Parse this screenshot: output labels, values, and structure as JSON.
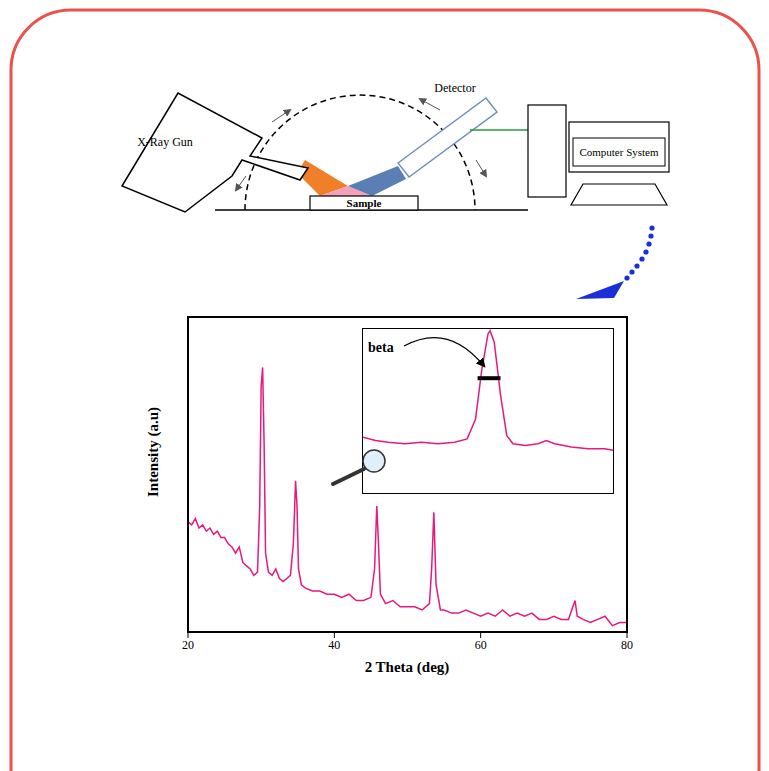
{
  "diagram": {
    "x_ray_gun": "X-Ray Gun",
    "detector": "Detector",
    "sample": "Sample",
    "computer": "Computer System"
  },
  "chart_data": [
    {
      "type": "line",
      "x_label": "2 Theta (deg)",
      "y_label": "Intensity (a.u)",
      "color": "#e8197d",
      "xlim": [
        20,
        80
      ],
      "xticks": [
        20,
        40,
        60,
        80
      ],
      "ylim": [
        0,
        100
      ],
      "tick_labels": "x",
      "x": [
        20,
        20.5,
        21,
        21.5,
        22,
        22.5,
        23,
        23.5,
        24,
        24.5,
        25,
        25.5,
        26,
        26.5,
        27,
        27.5,
        28,
        28.5,
        29,
        29.5,
        29.8,
        30.0,
        30.2,
        30.4,
        30.6,
        31,
        31.5,
        32,
        32.5,
        33,
        33.5,
        34,
        34.4,
        34.7,
        34.9,
        35.1,
        35.5,
        36,
        37,
        38,
        39,
        40,
        41,
        42,
        43,
        44,
        45,
        45.5,
        45.8,
        46.0,
        46.3,
        47,
        48,
        49,
        50,
        51,
        52,
        53,
        53.3,
        53.6,
        53.9,
        54.5,
        55,
        56,
        57,
        58,
        59,
        60,
        61,
        62,
        63,
        64,
        65,
        66,
        67,
        68,
        69,
        70,
        71,
        72,
        72.6,
        72.9,
        73.2,
        74,
        75,
        76,
        77,
        78,
        79,
        80
      ],
      "values": [
        35,
        34,
        36,
        33,
        34,
        32,
        33,
        31,
        32,
        30,
        30,
        28,
        27,
        25,
        27,
        22,
        21,
        20,
        18,
        19,
        40,
        78,
        84,
        60,
        25,
        19,
        18,
        20,
        17,
        16,
        17,
        18,
        28,
        48,
        40,
        20,
        15,
        14,
        13,
        13,
        12,
        12,
        11,
        12,
        10,
        10,
        11,
        20,
        40,
        30,
        12,
        9,
        10,
        8,
        8,
        8,
        7,
        9,
        20,
        38,
        15,
        7,
        7,
        6,
        6,
        7,
        6,
        5,
        6,
        5,
        7,
        5,
        6,
        5,
        6,
        4,
        4,
        5,
        4,
        4,
        8,
        10,
        5,
        4,
        3,
        4,
        5,
        2,
        3,
        3
      ]
    },
    {
      "type": "line",
      "annotation": "beta",
      "color": "#e8197d",
      "xlim": [
        27,
        33
      ],
      "ylim": [
        0,
        100
      ],
      "tick_labels": false,
      "x": [
        27,
        27.3,
        27.6,
        28,
        28.4,
        28.8,
        29.2,
        29.5,
        29.7,
        29.85,
        30.0,
        30.05,
        30.15,
        30.3,
        30.45,
        30.6,
        30.9,
        31.2,
        31.4,
        31.6,
        32,
        32.4,
        32.8,
        33
      ],
      "values": [
        34,
        32,
        31,
        30,
        31,
        30,
        31,
        33,
        45,
        75,
        97,
        99,
        92,
        60,
        35,
        30,
        29,
        30,
        32,
        30,
        28,
        27,
        27,
        26
      ],
      "annotation_segment": {
        "x": [
          29.75,
          30.3
        ],
        "y": 70
      }
    }
  ]
}
